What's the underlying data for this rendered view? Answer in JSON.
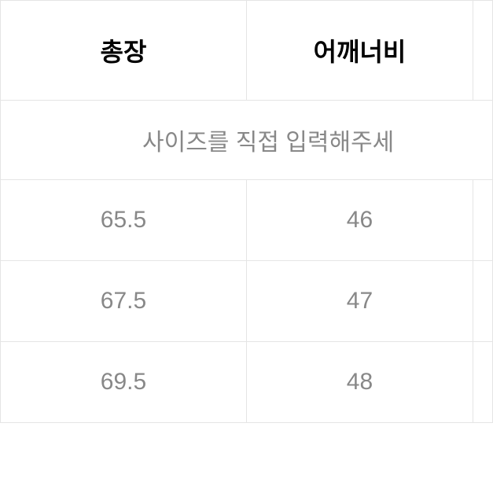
{
  "table": {
    "columns": [
      "총장",
      "어깨너비"
    ],
    "info_text": "사이즈를 직접 입력해주세",
    "rows": [
      [
        "65.5",
        "46"
      ],
      [
        "67.5",
        "47"
      ],
      [
        "69.5",
        "48"
      ]
    ],
    "header_fontsize": 32,
    "header_fontweight": 700,
    "header_color": "#000000",
    "cell_fontsize": 30,
    "cell_fontweight": 400,
    "cell_color": "#888888",
    "border_color": "#e5e5e5",
    "background_color": "#ffffff",
    "column_widths": [
      "50%",
      "46%",
      "4%"
    ],
    "header_padding": "40px 10px",
    "info_padding": "28px 10px",
    "data_padding": "34px 10px"
  }
}
